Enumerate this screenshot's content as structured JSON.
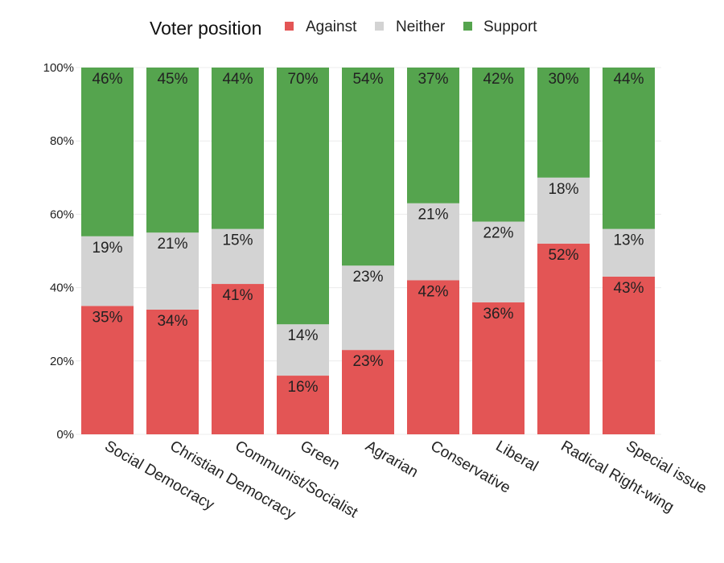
{
  "chart_data": {
    "type": "bar",
    "stacked": true,
    "percent_axis": true,
    "legend": {
      "title": "Voter position",
      "placement": "top",
      "entries": [
        "Against",
        "Neither",
        "Support"
      ]
    },
    "categories": [
      "Social Democracy",
      "Christian Democracy",
      "Communist/Socialist",
      "Green",
      "Agrarian",
      "Conservative",
      "Liberal",
      "Radical Right-wing",
      "Special issue"
    ],
    "series": [
      {
        "name": "Against",
        "color": "#e35555",
        "values": [
          35,
          34,
          41,
          16,
          23,
          42,
          36,
          52,
          43
        ]
      },
      {
        "name": "Neither",
        "color": "#d3d3d3",
        "values": [
          19,
          21,
          15,
          14,
          23,
          21,
          22,
          18,
          13
        ]
      },
      {
        "name": "Support",
        "color": "#55a44e",
        "values": [
          46,
          45,
          44,
          70,
          54,
          37,
          42,
          30,
          44
        ]
      }
    ],
    "data_labels": {
      "Against": [
        "35%",
        "34%",
        "41%",
        "16%",
        "23%",
        "42%",
        "36%",
        "52%",
        "43%"
      ],
      "Neither": [
        "19%",
        "21%",
        "15%",
        "14%",
        "23%",
        "21%",
        "22%",
        "18%",
        "13%"
      ],
      "Support": [
        "46%",
        "45%",
        "44%",
        "70%",
        "54%",
        "37%",
        "42%",
        "30%",
        "44%"
      ]
    },
    "ylim": [
      0,
      100
    ],
    "yticks": [
      0,
      20,
      40,
      60,
      80,
      100
    ],
    "ytick_labels": [
      "0%",
      "20%",
      "40%",
      "60%",
      "80%",
      "100%"
    ],
    "grid": true,
    "xlabel": "",
    "ylabel": ""
  }
}
